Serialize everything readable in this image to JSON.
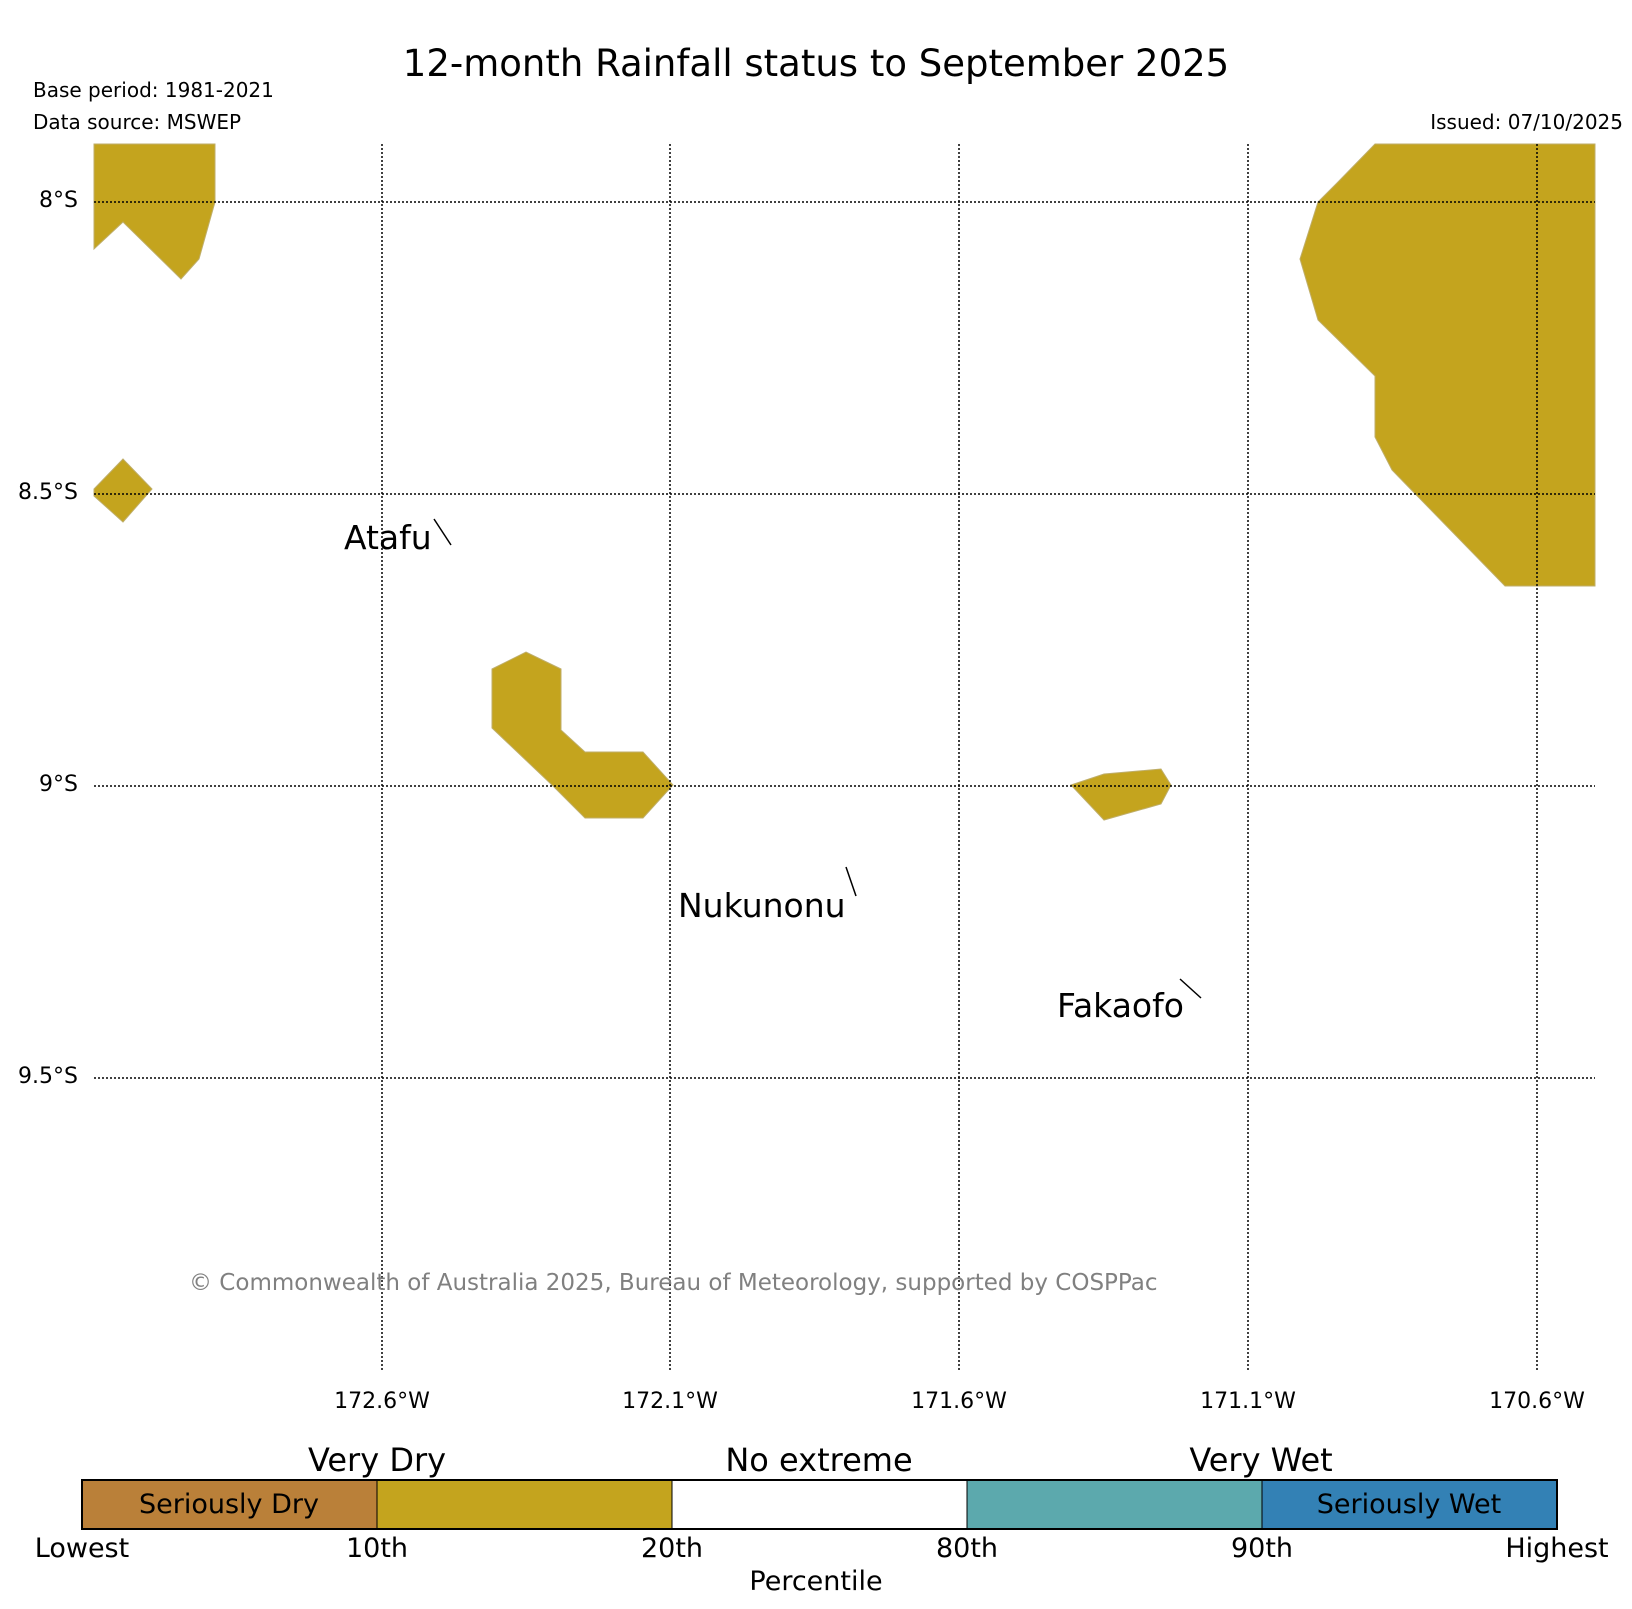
{
  "header": {
    "title": "12-month Rainfall status to September 2025",
    "base_period": "Base period: 1981-2021",
    "data_source": "Data source: MSWEP",
    "issued": "Issued: 07/10/2025"
  },
  "map": {
    "lat_labels": [
      "8°S",
      "8.5°S",
      "9°S",
      "9.5°S"
    ],
    "lon_labels": [
      "172.6°W",
      "172.1°W",
      "171.6°W",
      "171.1°W",
      "170.6°W"
    ],
    "places": [
      "Atafu",
      "Nukunonu",
      "Fakaofo"
    ],
    "copyright": "© Commonwealth of Australia 2025, Bureau of Meteorology, supported by COSPPac",
    "shaded_category": "Very Dry",
    "shaded_color": "#c4a41e"
  },
  "legend": {
    "group_labels": [
      "Very Dry",
      "No extreme",
      "Very Wet"
    ],
    "band_labels": [
      "Seriously Dry",
      "",
      "",
      "",
      "Seriously Wet"
    ],
    "band_colors": [
      "#ba8039",
      "#c4a41e",
      "#ffffff",
      "#5ca9ad",
      "#3381b5"
    ],
    "tick_labels": [
      "Lowest",
      "10th",
      "20th",
      "80th",
      "90th",
      "Highest"
    ],
    "axis_title": "Percentile"
  }
}
